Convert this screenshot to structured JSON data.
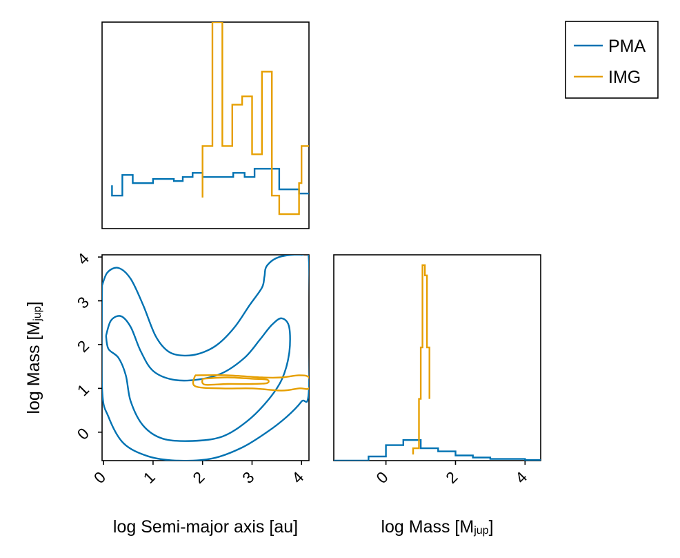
{
  "colors": {
    "pma": "#0072b2",
    "img": "#e69f00"
  },
  "legend": {
    "placement": "top-right",
    "entries": [
      {
        "label": "PMA",
        "color": "#0072b2"
      },
      {
        "label": "IMG",
        "color": "#e69f00"
      }
    ]
  },
  "chart_data": [
    {
      "id": "top-left",
      "type": "histogram",
      "xlim": [
        -0.03,
        4.15
      ],
      "ylim": [
        0,
        1
      ],
      "title": "",
      "xlabel": "",
      "ylabel": "",
      "grid": false,
      "series": [
        {
          "name": "PMA",
          "color": "#0072b2",
          "points": [
            [
              0.17,
              0.21
            ],
            [
              0.17,
              0.16
            ],
            [
              0.38,
              0.16
            ],
            [
              0.38,
              0.26
            ],
            [
              0.59,
              0.26
            ],
            [
              0.59,
              0.22
            ],
            [
              1.0,
              0.22
            ],
            [
              1.0,
              0.24
            ],
            [
              1.42,
              0.24
            ],
            [
              1.42,
              0.23
            ],
            [
              1.6,
              0.23
            ],
            [
              1.6,
              0.25
            ],
            [
              1.8,
              0.25
            ],
            [
              1.8,
              0.27
            ],
            [
              2.0,
              0.27
            ],
            [
              2.0,
              0.25
            ],
            [
              2.62,
              0.25
            ],
            [
              2.62,
              0.27
            ],
            [
              2.85,
              0.27
            ],
            [
              2.85,
              0.25
            ],
            [
              3.05,
              0.25
            ],
            [
              3.05,
              0.29
            ],
            [
              3.55,
              0.29
            ],
            [
              3.55,
              0.19
            ],
            [
              3.95,
              0.19
            ],
            [
              3.95,
              0.17
            ],
            [
              4.15,
              0.17
            ]
          ]
        },
        {
          "name": "IMG",
          "color": "#e69f00",
          "points": [
            [
              2.0,
              0.15
            ],
            [
              2.0,
              0.4
            ],
            [
              2.2,
              0.4
            ],
            [
              2.2,
              1.0
            ],
            [
              2.4,
              1.0
            ],
            [
              2.4,
              0.4
            ],
            [
              2.6,
              0.4
            ],
            [
              2.6,
              0.6
            ],
            [
              2.8,
              0.6
            ],
            [
              2.8,
              0.64
            ],
            [
              3.0,
              0.64
            ],
            [
              3.0,
              0.36
            ],
            [
              3.2,
              0.36
            ],
            [
              3.2,
              0.76
            ],
            [
              3.4,
              0.76
            ],
            [
              3.4,
              0.16
            ],
            [
              3.55,
              0.16
            ],
            [
              3.55,
              0.07
            ],
            [
              3.95,
              0.07
            ],
            [
              3.95,
              0.22
            ],
            [
              4.0,
              0.22
            ],
            [
              4.0,
              0.4
            ],
            [
              4.15,
              0.4
            ]
          ]
        }
      ]
    },
    {
      "id": "bottom-left",
      "type": "contour",
      "xlim": [
        -0.03,
        4.15
      ],
      "ylim": [
        -0.65,
        4.05
      ],
      "title": "",
      "xlabel": "log Semi-major axis [au]",
      "ylabel": "log Mass [M",
      "ylabel_sub": "jup",
      "ylabel_end": "]",
      "xticks": [
        0,
        1,
        2,
        3,
        4
      ],
      "xtick_labels": [
        "0",
        "1",
        "2",
        "3",
        "4"
      ],
      "yticks": [
        0,
        1,
        2,
        3,
        4
      ],
      "ytick_labels": [
        "0",
        "1",
        "2",
        "3",
        "4"
      ],
      "grid": false,
      "contours": [
        {
          "name": "PMA",
          "color": "#0072b2",
          "level": "outer",
          "points": [
            [
              -0.03,
              3.35
            ],
            [
              0.08,
              3.65
            ],
            [
              0.3,
              3.75
            ],
            [
              0.55,
              3.5
            ],
            [
              0.8,
              2.9
            ],
            [
              1.05,
              2.2
            ],
            [
              1.3,
              1.85
            ],
            [
              1.6,
              1.75
            ],
            [
              1.95,
              1.8
            ],
            [
              2.3,
              2.0
            ],
            [
              2.65,
              2.4
            ],
            [
              2.95,
              2.9
            ],
            [
              3.2,
              3.3
            ],
            [
              3.25,
              3.55
            ],
            [
              3.3,
              3.8
            ],
            [
              3.55,
              4.0
            ],
            [
              4.0,
              4.05
            ],
            [
              4.15,
              3.9
            ],
            [
              4.15,
              1.0
            ],
            [
              4.0,
              0.7
            ],
            [
              3.7,
              0.35
            ],
            [
              3.3,
              0.0
            ],
            [
              2.8,
              -0.35
            ],
            [
              2.2,
              -0.6
            ],
            [
              1.5,
              -0.65
            ],
            [
              0.9,
              -0.55
            ],
            [
              0.4,
              -0.25
            ],
            [
              0.1,
              0.35
            ],
            [
              -0.03,
              1.0
            ],
            [
              -0.03,
              3.35
            ]
          ]
        },
        {
          "name": "PMA",
          "color": "#0072b2",
          "level": "inner",
          "points": [
            [
              0.05,
              2.2
            ],
            [
              0.15,
              2.55
            ],
            [
              0.35,
              2.65
            ],
            [
              0.55,
              2.4
            ],
            [
              0.75,
              1.85
            ],
            [
              1.0,
              1.4
            ],
            [
              1.4,
              1.2
            ],
            [
              1.9,
              1.2
            ],
            [
              2.4,
              1.35
            ],
            [
              2.85,
              1.7
            ],
            [
              3.15,
              2.1
            ],
            [
              3.4,
              2.45
            ],
            [
              3.6,
              2.6
            ],
            [
              3.75,
              2.4
            ],
            [
              3.75,
              1.8
            ],
            [
              3.6,
              1.2
            ],
            [
              3.3,
              0.7
            ],
            [
              2.9,
              0.25
            ],
            [
              2.4,
              -0.1
            ],
            [
              1.8,
              -0.2
            ],
            [
              1.2,
              -0.15
            ],
            [
              0.8,
              0.15
            ],
            [
              0.55,
              0.7
            ],
            [
              0.45,
              1.3
            ],
            [
              0.3,
              1.7
            ],
            [
              0.1,
              1.9
            ],
            [
              0.05,
              2.2
            ]
          ]
        },
        {
          "name": "IMG",
          "color": "#e69f00",
          "level": "outer",
          "points": [
            [
              1.85,
              1.3
            ],
            [
              2.5,
              1.3
            ],
            [
              3.2,
              1.25
            ],
            [
              3.6,
              1.25
            ],
            [
              3.95,
              1.3
            ],
            [
              4.15,
              1.25
            ],
            [
              4.15,
              1.0
            ],
            [
              3.95,
              1.0
            ],
            [
              3.6,
              0.95
            ],
            [
              3.0,
              1.0
            ],
            [
              2.4,
              1.0
            ],
            [
              1.85,
              1.05
            ],
            [
              1.85,
              1.3
            ]
          ]
        },
        {
          "name": "IMG",
          "color": "#e69f00",
          "level": "inner",
          "points": [
            [
              2.0,
              1.22
            ],
            [
              2.5,
              1.25
            ],
            [
              3.0,
              1.22
            ],
            [
              3.3,
              1.2
            ],
            [
              3.3,
              1.12
            ],
            [
              3.0,
              1.1
            ],
            [
              2.5,
              1.1
            ],
            [
              2.1,
              1.08
            ],
            [
              2.0,
              1.12
            ],
            [
              2.0,
              1.22
            ]
          ]
        }
      ]
    },
    {
      "id": "bottom-right",
      "type": "histogram",
      "xlim": [
        -1.5,
        4.45
      ],
      "ylim": [
        0,
        1
      ],
      "title": "",
      "xlabel": "log Mass [M",
      "xlabel_sub": "jup",
      "xlabel_end": "]",
      "xticks": [
        0,
        2,
        4
      ],
      "xtick_labels": [
        "0",
        "2",
        "4"
      ],
      "grid": false,
      "series": [
        {
          "name": "PMA",
          "color": "#0072b2",
          "points": [
            [
              -1.5,
              0.0
            ],
            [
              -0.5,
              0.0
            ],
            [
              -0.5,
              0.02
            ],
            [
              0.0,
              0.02
            ],
            [
              0.0,
              0.075
            ],
            [
              0.5,
              0.075
            ],
            [
              0.5,
              0.1
            ],
            [
              1.0,
              0.1
            ],
            [
              1.0,
              0.06
            ],
            [
              1.5,
              0.06
            ],
            [
              1.5,
              0.045
            ],
            [
              2.0,
              0.045
            ],
            [
              2.0,
              0.025
            ],
            [
              2.5,
              0.025
            ],
            [
              2.5,
              0.015
            ],
            [
              3.0,
              0.015
            ],
            [
              3.0,
              0.008
            ],
            [
              4.0,
              0.008
            ],
            [
              4.0,
              0.003
            ],
            [
              4.45,
              0.003
            ]
          ]
        },
        {
          "name": "IMG",
          "color": "#e69f00",
          "points": [
            [
              0.78,
              0.03
            ],
            [
              0.78,
              0.06
            ],
            [
              0.86,
              0.06
            ],
            [
              0.86,
              0.06
            ],
            [
              0.95,
              0.06
            ],
            [
              0.95,
              0.3
            ],
            [
              1.0,
              0.3
            ],
            [
              1.0,
              0.55
            ],
            [
              1.05,
              0.55
            ],
            [
              1.05,
              0.95
            ],
            [
              1.12,
              0.95
            ],
            [
              1.12,
              0.9
            ],
            [
              1.18,
              0.9
            ],
            [
              1.18,
              0.55
            ],
            [
              1.25,
              0.55
            ],
            [
              1.25,
              0.3
            ]
          ]
        }
      ]
    }
  ]
}
